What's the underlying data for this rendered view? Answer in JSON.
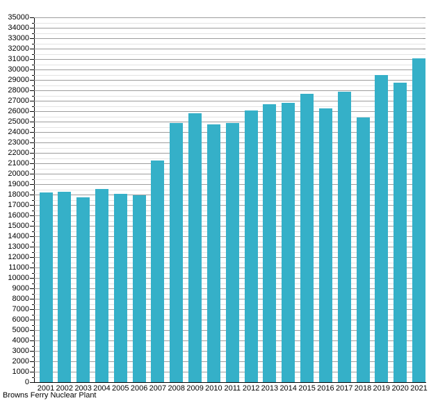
{
  "chart_data": {
    "type": "bar",
    "title": "",
    "caption": "Browns Ferry Nuclear Plant",
    "xlabel": "",
    "ylabel": "",
    "categories": [
      "2001",
      "2002",
      "2003",
      "2004",
      "2005",
      "2006",
      "2007",
      "2008",
      "2009",
      "2010",
      "2011",
      "2012",
      "2013",
      "2014",
      "2015",
      "2016",
      "2017",
      "2018",
      "2019",
      "2020",
      "2021"
    ],
    "values": [
      18200,
      18250,
      17750,
      18550,
      18050,
      17950,
      21250,
      24850,
      25800,
      24750,
      24900,
      26100,
      26700,
      26800,
      27700,
      26250,
      27850,
      25400,
      29500,
      28750,
      31050
    ],
    "ylim": [
      0,
      35000
    ],
    "ytick_major_step": 1000,
    "ytick_minor_step": 500,
    "grid": "on",
    "legend": "none",
    "bar_color": "#35b0c8",
    "major_grid_color": "#9c9c9c",
    "minor_grid_color": "#e3e3e3",
    "axis_color": "#000000",
    "text_color": "#000000",
    "background_color": "#ffffff"
  }
}
